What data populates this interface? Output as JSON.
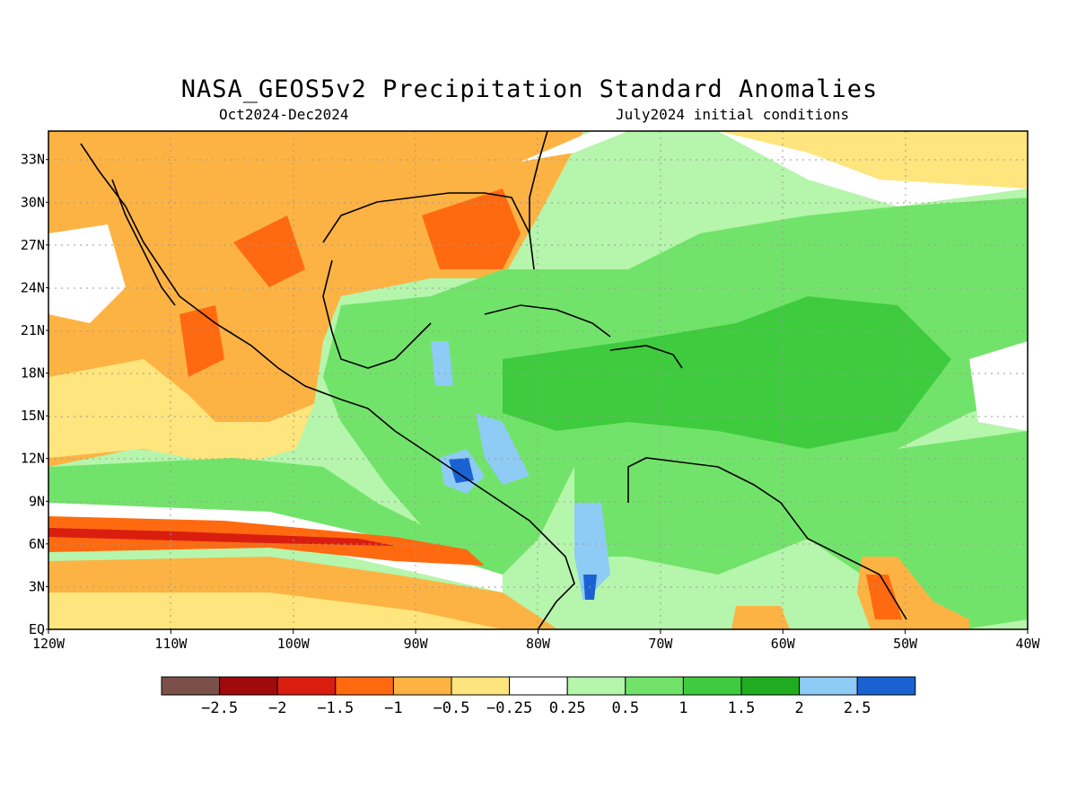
{
  "figure": {
    "title": "NASA_GEOS5v2 Precipitation Standard Anomalies",
    "period": "Oct2024-Dec2024",
    "initial_conditions": "July2024 initial conditions"
  },
  "map": {
    "region": {
      "lon_min": -120,
      "lon_max": -40,
      "lat_min": 0,
      "lat_max": 35
    },
    "x_ticks": [
      "120W",
      "110W",
      "100W",
      "90W",
      "80W",
      "70W",
      "60W",
      "50W",
      "40W"
    ],
    "y_ticks": [
      "EQ",
      "3N",
      "6N",
      "9N",
      "12N",
      "15N",
      "18N",
      "21N",
      "24N",
      "27N",
      "30N",
      "33N"
    ],
    "gridlines": "dotted"
  },
  "colorbar": {
    "colors": [
      "#7b5048",
      "#a10a0a",
      "#d91e10",
      "#ff6a10",
      "#fdb343",
      "#fee57d",
      "#ffffff",
      "#b6f5ac",
      "#72e36a",
      "#3ecb3e",
      "#1fad1f",
      "#8ecbf5",
      "#1a62d2"
    ],
    "labels": [
      "-2.5",
      "-2",
      "-1.5",
      "-1",
      "-0.5",
      "-0.25",
      "0.25",
      "0.5",
      "1",
      "1.5",
      "2",
      "2.5"
    ]
  }
}
